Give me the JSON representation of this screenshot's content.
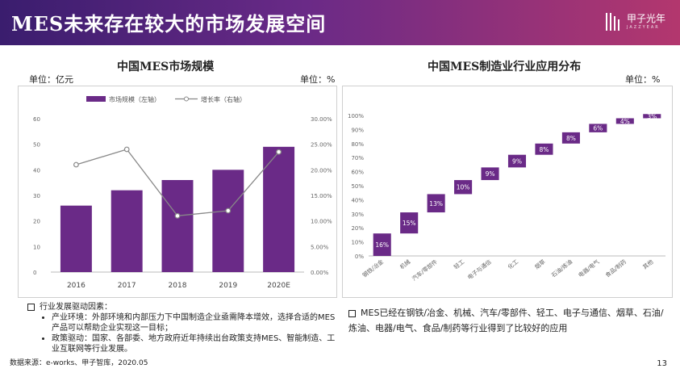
{
  "header": {
    "title": "MES未来存在较大的市场发展空间",
    "logo_text": "甲子光年",
    "logo_sub": "JAZZYEAR"
  },
  "left": {
    "title": "中国MES市场规模",
    "unit_left": "单位：亿元",
    "unit_right": "单位：%"
  },
  "right": {
    "title": "中国MES制造业行业应用分布",
    "unit": "单位：%"
  },
  "chart_data": [
    {
      "type": "bar",
      "title": "中国MES市场规模",
      "categories": [
        "2016",
        "2017",
        "2018",
        "2019",
        "2020E"
      ],
      "series": [
        {
          "name": "市场规模（左轴）",
          "type": "bar",
          "values": [
            26,
            32,
            36,
            40,
            49
          ],
          "color": "#6a2a87"
        },
        {
          "name": "增长率（右轴）",
          "type": "line",
          "values": [
            21,
            24,
            11,
            12,
            23.5
          ],
          "color": "#888888"
        }
      ],
      "ylim": [
        0,
        60
      ],
      "y_ticks": [
        "0",
        "10",
        "20",
        "30",
        "40",
        "50",
        "60"
      ],
      "y2lim": [
        0,
        30
      ],
      "y2_ticks": [
        "0.00%",
        "5.00%",
        "10.00%",
        "15.00%",
        "20.00%",
        "25.00%",
        "30.00%"
      ],
      "legend": "top",
      "grid": false
    },
    {
      "type": "bar",
      "title": "中国MES制造业行业应用分布",
      "subtype": "waterfall",
      "categories": [
        "钢铁/冶金",
        "机械",
        "汽车/零部件",
        "轻工",
        "电子与通信",
        "化工",
        "烟草",
        "石油/炼油",
        "电器/电气",
        "食品/制药",
        "其他"
      ],
      "values": [
        16,
        15,
        13,
        10,
        9,
        9,
        8,
        8,
        6,
        4,
        3
      ],
      "value_labels": [
        "16%",
        "15%",
        "13%",
        "10%",
        "9%",
        "9%",
        "8%",
        "8%",
        "6%",
        "4%",
        "3%"
      ],
      "y_ticks": [
        "0%",
        "10%",
        "20%",
        "30%",
        "40%",
        "50%",
        "60%",
        "70%",
        "80%",
        "90%",
        "100%"
      ],
      "ylim": [
        0,
        100
      ],
      "color": "#6a2a87",
      "grid": false
    }
  ],
  "bullets": {
    "heading": "行业发展驱动因素：",
    "items": [
      "产业环境：外部环境和内部压力下中国制造企业亟需降本增效，选择合适的MES产品可以帮助企业实现这一目标；",
      "政策驱动：国家、各部委、地方政府近年持续出台政策支持MES、智能制造、工业互联网等行业发展。"
    ]
  },
  "right_note": "MES已经在钢铁/冶金、机械、汽车/零部件、轻工、电子与通信、烟草、石油/炼油、电器/电气、食品/制药等行业得到了比较好的应用",
  "footer": {
    "source": "数据来源：e-works、甲子智库，2020.05",
    "page": "13"
  }
}
